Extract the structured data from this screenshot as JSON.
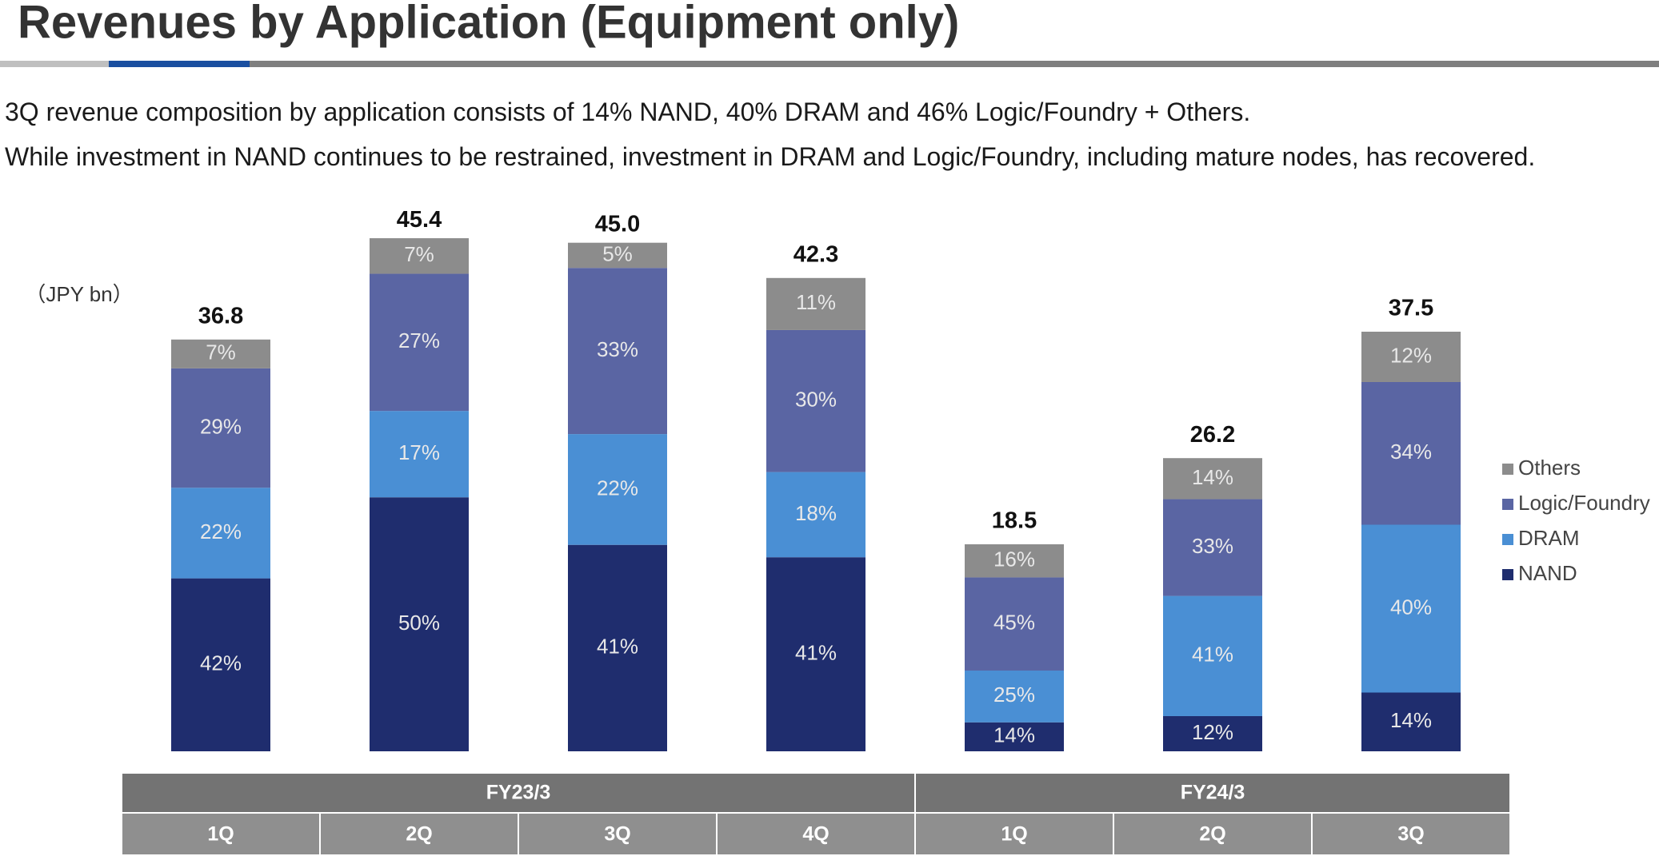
{
  "chart_data": {
    "type": "stacked_percent_bar",
    "title": "Revenues by Application (Equipment only)",
    "notes": [
      "3Q revenue composition by application consists of 14% NAND, 40% DRAM and 46% Logic/Foundry + Others.",
      "While investment in NAND continues to be restrained, investment in DRAM and Logic/Foundry, including mature nodes, has recovered."
    ],
    "unit_label": "（JPY bn）",
    "groups": [
      {
        "name": "FY23/3",
        "categories": [
          "1Q",
          "2Q",
          "3Q",
          "4Q"
        ]
      },
      {
        "name": "FY24/3",
        "categories": [
          "1Q",
          "2Q",
          "3Q"
        ]
      }
    ],
    "totals": [
      36.8,
      45.4,
      45.0,
      42.3,
      18.5,
      26.2,
      37.5
    ],
    "total_labels": [
      "36.8",
      "45.4",
      "45.0",
      "42.3",
      "18.5",
      "26.2",
      "37.5"
    ],
    "series": [
      {
        "name": "NAND",
        "color": "#1f2d6e",
        "values": [
          42,
          50,
          41,
          41,
          14,
          12,
          14
        ],
        "value_labels": [
          "42%",
          "50%",
          "41%",
          "41%",
          "14%",
          "12%",
          "14%"
        ]
      },
      {
        "name": "DRAM",
        "color": "#4a8fd4",
        "values": [
          22,
          17,
          22,
          18,
          25,
          41,
          40
        ],
        "value_labels": [
          "22%",
          "17%",
          "22%",
          "18%",
          "25%",
          "41%",
          "40%"
        ]
      },
      {
        "name": "Logic/Foundry",
        "color": "#5a65a3",
        "values": [
          29,
          27,
          33,
          30,
          45,
          33,
          34
        ],
        "value_labels": [
          "29%",
          "27%",
          "33%",
          "30%",
          "45%",
          "33%",
          "34%"
        ]
      },
      {
        "name": "Others",
        "color": "#8c8c8c",
        "values": [
          7,
          7,
          5,
          11,
          16,
          14,
          12
        ],
        "value_labels": [
          "7%",
          "7%",
          "5%",
          "11%",
          "16%",
          "14%",
          "12%"
        ]
      }
    ],
    "legend": "right"
  }
}
